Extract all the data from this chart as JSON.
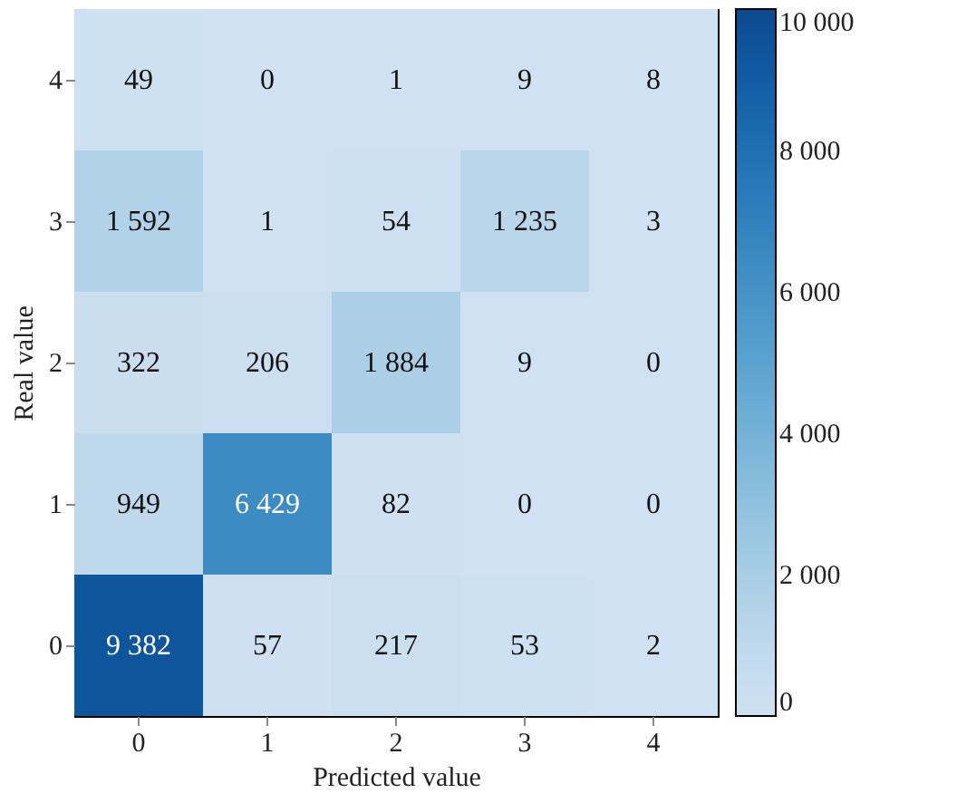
{
  "chart_data": {
    "type": "heatmap",
    "xlabel": "Predicted value",
    "ylabel": "Real value",
    "categories": [
      "0",
      "1",
      "2",
      "3",
      "4"
    ],
    "y_categories": [
      "4",
      "3",
      "2",
      "1",
      "0"
    ],
    "cells": [
      [
        49,
        0,
        1,
        9,
        8
      ],
      [
        1592,
        1,
        54,
        1235,
        3
      ],
      [
        322,
        206,
        1884,
        9,
        0
      ],
      [
        949,
        6429,
        82,
        0,
        0
      ],
      [
        9382,
        57,
        217,
        53,
        2
      ]
    ],
    "cell_labels": [
      [
        "49",
        "0",
        "1",
        "9",
        "8"
      ],
      [
        "1 592",
        "1",
        "54",
        "1 235",
        "3"
      ],
      [
        "322",
        "206",
        "1 884",
        "9",
        "0"
      ],
      [
        "949",
        "6 429",
        "82",
        "0",
        "0"
      ],
      [
        "9 382",
        "57",
        "217",
        "53",
        "2"
      ]
    ],
    "clim": [
      0,
      10000
    ],
    "cticks": [
      0,
      {
        "value": 2000,
        "label": "2 000"
      },
      {
        "value": 4000,
        "label": "4 000"
      },
      {
        "value": 6000,
        "label": "6 000"
      },
      {
        "value": 8000,
        "label": "8 000"
      },
      {
        "value": 10000,
        "label": "10 000"
      }
    ]
  }
}
